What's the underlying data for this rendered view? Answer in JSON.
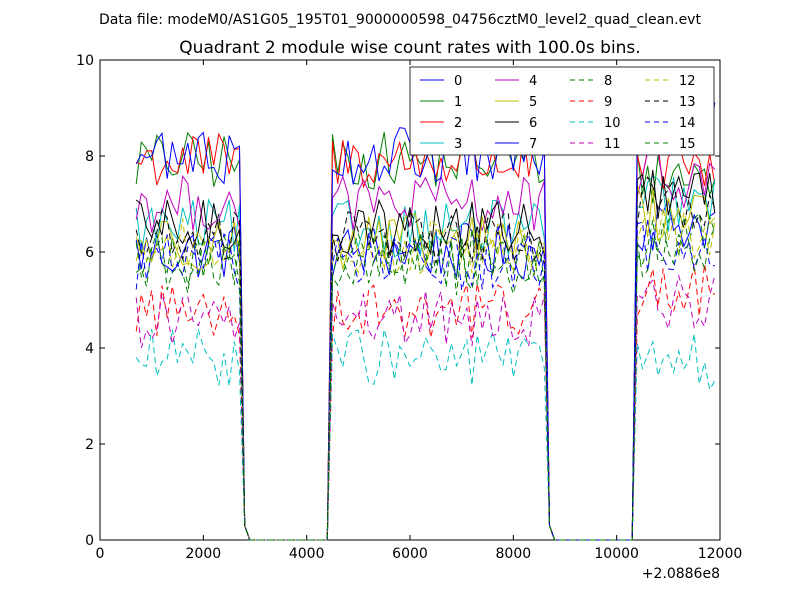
{
  "chart_data": {
    "type": "line",
    "suptitle": "Data file: modeM0/AS1G05_195T01_9000000598_04756cztM0_level2_quad_clean.evt",
    "title": "Quadrant 2 module wise count rates with 100.0s bins.",
    "xlabel": "",
    "ylabel": "",
    "x_offset_label": "+2.0886e8",
    "xlim": [
      0,
      12000
    ],
    "ylim": [
      0,
      10
    ],
    "x_ticks": [
      0,
      2000,
      4000,
      6000,
      8000,
      10000,
      12000
    ],
    "y_ticks": [
      0,
      2,
      4,
      6,
      8,
      10
    ],
    "x_tick_labels": [
      "0",
      "2000",
      "4000",
      "6000",
      "8000",
      "10000",
      "12000"
    ],
    "y_tick_labels": [
      "0",
      "2",
      "4",
      "6",
      "8",
      "10"
    ],
    "grid": false,
    "legend_position": "top-right",
    "segments": [
      {
        "start": 700,
        "end": 2700,
        "step": 100
      },
      {
        "start": 4500,
        "end": 8600,
        "step": 100
      },
      {
        "start": 10400,
        "end": 11900,
        "step": 100
      }
    ],
    "gap_level": 0,
    "series": [
      {
        "name": "0",
        "color": "#0000ff",
        "dash": "solid",
        "mean": 6.0,
        "seg3_mean": 6.6
      },
      {
        "name": "1",
        "color": "#007f00",
        "dash": "solid",
        "mean": 7.9,
        "seg3_mean": 7.6
      },
      {
        "name": "2",
        "color": "#ff0000",
        "dash": "solid",
        "mean": 7.9,
        "seg3_mean": 7.8
      },
      {
        "name": "3",
        "color": "#00bfbf",
        "dash": "solid",
        "mean": 6.5,
        "seg3_mean": 7.0
      },
      {
        "name": "4",
        "color": "#bf00bf",
        "dash": "solid",
        "mean": 7.0,
        "seg3_mean": 7.5
      },
      {
        "name": "5",
        "color": "#bfbf00",
        "dash": "solid",
        "mean": 6.2,
        "seg3_mean": 6.8
      },
      {
        "name": "6",
        "color": "#000000",
        "dash": "solid",
        "mean": 6.5,
        "seg3_mean": 7.2
      },
      {
        "name": "7",
        "color": "#0000ff",
        "dash": "solid",
        "mean": 8.0,
        "seg3_mean": 8.6
      },
      {
        "name": "8",
        "color": "#007f00",
        "dash": "dashed",
        "mean": 5.9,
        "seg3_mean": 6.2
      },
      {
        "name": "9",
        "color": "#ff0000",
        "dash": "dashed",
        "mean": 4.8,
        "seg3_mean": 5.2
      },
      {
        "name": "10",
        "color": "#00bfbf",
        "dash": "dashed",
        "mean": 3.8,
        "seg3_mean": 3.7
      },
      {
        "name": "11",
        "color": "#bf00bf",
        "dash": "dashed",
        "mean": 4.6,
        "seg3_mean": 5.0
      },
      {
        "name": "12",
        "color": "#bfbf00",
        "dash": "dashed",
        "mean": 6.1,
        "seg3_mean": 6.4
      },
      {
        "name": "13",
        "color": "#000000",
        "dash": "dashed",
        "mean": 6.3,
        "seg3_mean": 7.0
      },
      {
        "name": "14",
        "color": "#0000ff",
        "dash": "dashed",
        "mean": 5.8,
        "seg3_mean": 6.1
      },
      {
        "name": "15",
        "color": "#007f00",
        "dash": "dashed",
        "mean": 5.7,
        "seg3_mean": 6.0
      }
    ]
  }
}
